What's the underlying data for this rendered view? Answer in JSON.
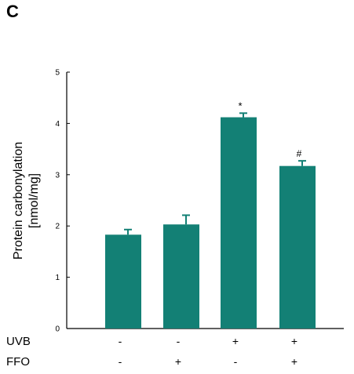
{
  "panel_label": "C",
  "chart_data": {
    "type": "bar",
    "ylabel_line1": "Protein carbonylation",
    "ylabel_line2": "[nmol/mg]",
    "ylim": [
      0,
      5
    ],
    "yticks": [
      "0",
      "1",
      "2",
      "3",
      "4",
      "5"
    ],
    "bar_color": "#138075",
    "grid": false,
    "bars": [
      {
        "value": 1.83,
        "error": 0.1,
        "annotation": ""
      },
      {
        "value": 2.03,
        "error": 0.18,
        "annotation": ""
      },
      {
        "value": 4.12,
        "error": 0.08,
        "annotation": "*"
      },
      {
        "value": 3.17,
        "error": 0.1,
        "annotation": "#"
      }
    ],
    "treatment_rows": [
      {
        "label": "UVB",
        "signs": [
          "-",
          "-",
          "+",
          "+"
        ]
      },
      {
        "label": "FFO",
        "signs": [
          "-",
          "+",
          "-",
          "+"
        ]
      }
    ]
  }
}
